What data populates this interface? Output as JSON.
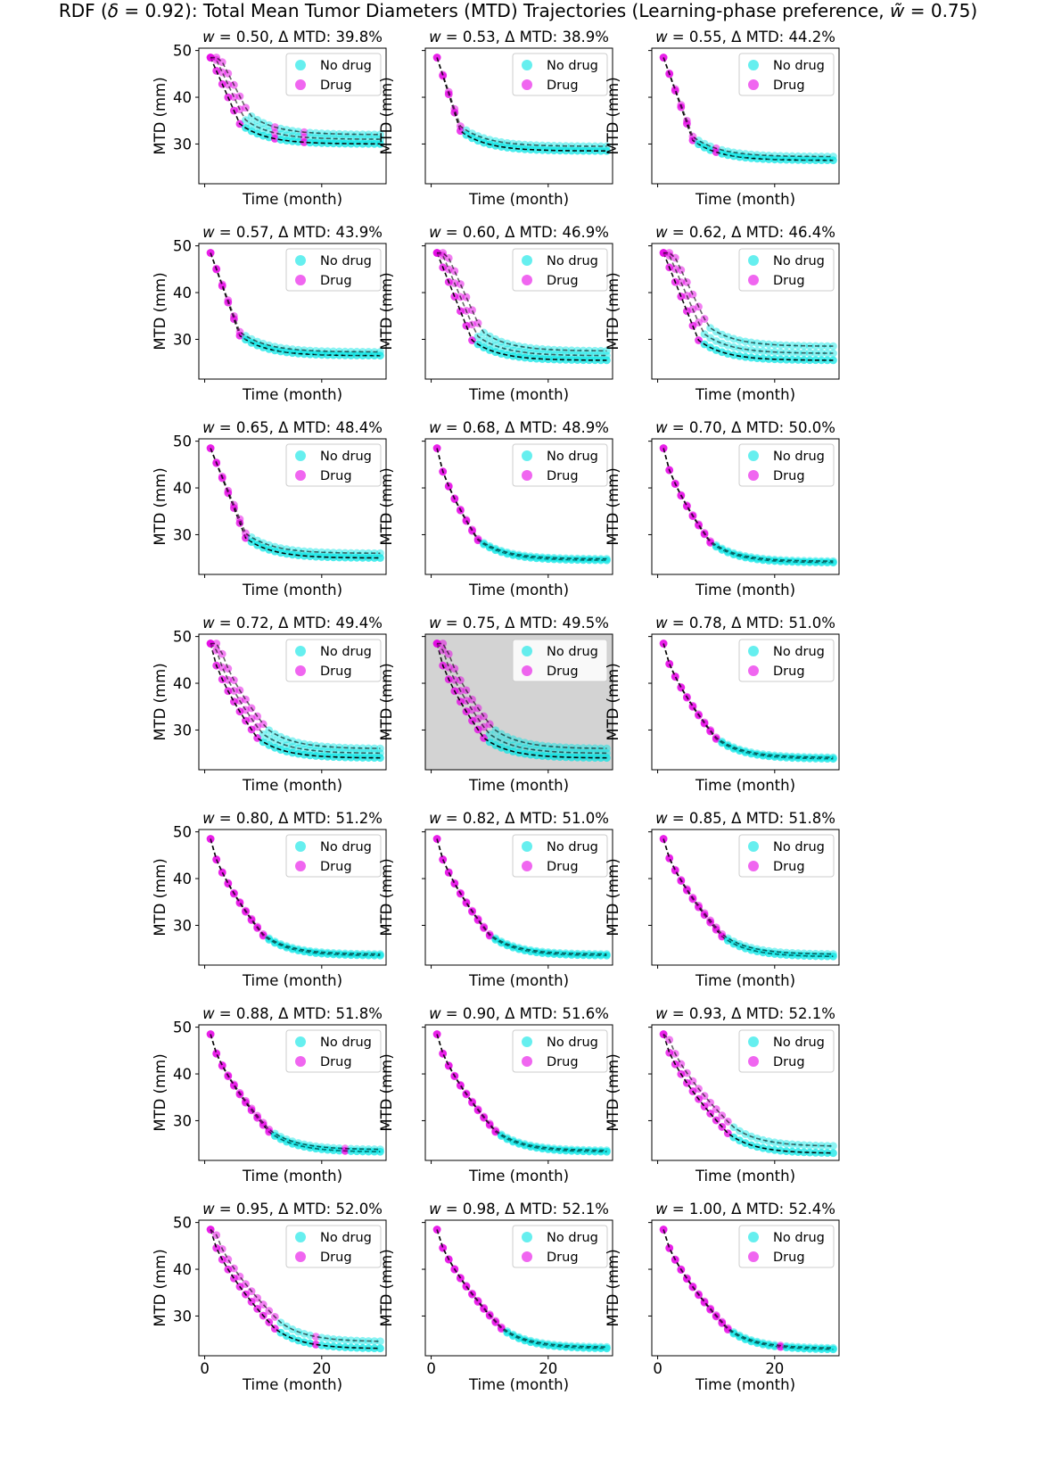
{
  "figure": {
    "title_prefix": "RDF (",
    "title_delta": "δ",
    "title_mid": " = 0.92): Total Mean Tumor Diameters (MTD) Trajectories (Learning-phase preference, ",
    "title_w": "w̃",
    "title_suffix": " = 0.75)"
  },
  "labels": {
    "ylabel": "MTD (mm)",
    "xlabel": "Time (month)",
    "legend_no_drug": "No drug",
    "legend_drug": "Drug",
    "w_symbol": "w",
    "delta_prefix": " = ",
    "delta_mid": ", Δ MTD: "
  },
  "colors": {
    "no_drug": "#00e5e5",
    "drug": "#e600e6",
    "line": "#000000",
    "highlight_bg": "#d3d3d3"
  },
  "chart_data": {
    "type": "line",
    "xlabel": "Time (month)",
    "ylabel": "MTD (mm)",
    "xlim": [
      -1,
      31
    ],
    "ylim": [
      21.5,
      50.5
    ],
    "xticks": [
      0,
      20
    ],
    "yticks": [
      30,
      40,
      50
    ],
    "highlighted_panel": "w = 0.75",
    "panels": [
      {
        "w": "0.50",
        "delta": "39.8%",
        "plateau": 30.0,
        "spread": 2.0,
        "drug_months": 6,
        "late_drug": [
          12,
          17
        ]
      },
      {
        "w": "0.53",
        "delta": "38.9%",
        "plateau": 28.5,
        "spread": 1.0,
        "drug_months": 5,
        "late_drug": []
      },
      {
        "w": "0.55",
        "delta": "44.2%",
        "plateau": 26.5,
        "spread": 0.8,
        "drug_months": 6,
        "late_drug": [
          10
        ]
      },
      {
        "w": "0.57",
        "delta": "43.9%",
        "plateau": 26.5,
        "spread": 0.8,
        "drug_months": 6,
        "late_drug": []
      },
      {
        "w": "0.60",
        "delta": "46.9%",
        "plateau": 25.5,
        "spread": 2.0,
        "drug_months": 7,
        "late_drug": []
      },
      {
        "w": "0.62",
        "delta": "46.4%",
        "plateau": 25.5,
        "spread": 3.0,
        "drug_months": 7,
        "late_drug": []
      },
      {
        "w": "0.65",
        "delta": "48.4%",
        "plateau": 25.0,
        "spread": 1.0,
        "drug_months": 7,
        "late_drug": []
      },
      {
        "w": "0.68",
        "delta": "48.9%",
        "plateau": 24.5,
        "spread": 0.3,
        "drug_months": 8,
        "late_drug": []
      },
      {
        "w": "0.70",
        "delta": "50.0%",
        "plateau": 24.0,
        "spread": 0.3,
        "drug_months": 9,
        "late_drug": []
      },
      {
        "w": "0.72",
        "delta": "49.4%",
        "plateau": 24.0,
        "spread": 2.0,
        "drug_months": 9,
        "late_drug": []
      },
      {
        "w": "0.75",
        "delta": "49.5%",
        "plateau": 24.0,
        "spread": 2.0,
        "drug_months": 9,
        "late_drug": []
      },
      {
        "w": "0.78",
        "delta": "51.0%",
        "plateau": 23.8,
        "spread": 0.3,
        "drug_months": 10,
        "late_drug": []
      },
      {
        "w": "0.80",
        "delta": "51.2%",
        "plateau": 23.5,
        "spread": 0.3,
        "drug_months": 10,
        "late_drug": []
      },
      {
        "w": "0.82",
        "delta": "51.0%",
        "plateau": 23.5,
        "spread": 0.3,
        "drug_months": 10,
        "late_drug": []
      },
      {
        "w": "0.85",
        "delta": "51.8%",
        "plateau": 23.3,
        "spread": 0.5,
        "drug_months": 11,
        "late_drug": []
      },
      {
        "w": "0.88",
        "delta": "51.8%",
        "plateau": 23.3,
        "spread": 0.5,
        "drug_months": 11,
        "late_drug": [
          24
        ]
      },
      {
        "w": "0.90",
        "delta": "51.6%",
        "plateau": 23.3,
        "spread": 0.3,
        "drug_months": 11,
        "late_drug": []
      },
      {
        "w": "0.93",
        "delta": "52.1%",
        "plateau": 23.0,
        "spread": 1.5,
        "drug_months": 12,
        "late_drug": []
      },
      {
        "w": "0.95",
        "delta": "52.0%",
        "plateau": 23.0,
        "spread": 1.5,
        "drug_months": 12,
        "late_drug": [
          19
        ]
      },
      {
        "w": "0.98",
        "delta": "52.1%",
        "plateau": 23.0,
        "spread": 0.3,
        "drug_months": 12,
        "late_drug": []
      },
      {
        "w": "1.00",
        "delta": "52.4%",
        "plateau": 22.8,
        "spread": 0.3,
        "drug_months": 12,
        "late_drug": [
          21
        ]
      }
    ]
  }
}
